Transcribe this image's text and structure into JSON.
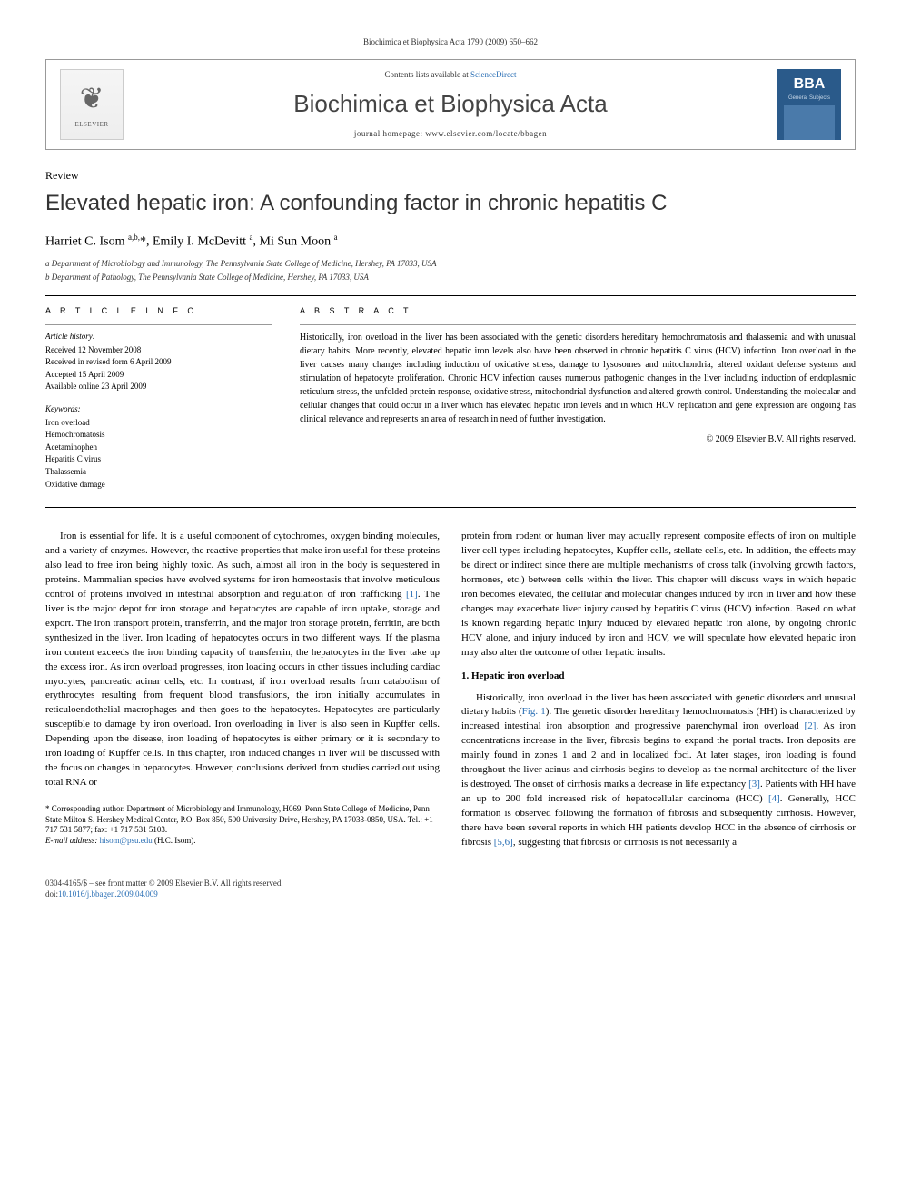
{
  "page_header": "Biochimica et Biophysica Acta 1790 (2009) 650–662",
  "banner": {
    "elsevier": "ELSEVIER",
    "contents_prefix": "Contents lists available at ",
    "sciencedirect": "ScienceDirect",
    "journal_name": "Biochimica et Biophysica Acta",
    "homepage_label": "journal homepage: ",
    "homepage_url": "www.elsevier.com/locate/bbagen",
    "bba_label": "BBA",
    "bba_sub": "General Subjects"
  },
  "article_type": "Review",
  "title": "Elevated hepatic iron: A confounding factor in chronic hepatitis C",
  "authors_html": "Harriet C. Isom <sup>a,b,</sup>*, Emily I. McDevitt <sup>a</sup>, Mi Sun Moon <sup>a</sup>",
  "affiliations": [
    "a Department of Microbiology and Immunology, The Pennsylvania State College of Medicine, Hershey, PA 17033, USA",
    "b Department of Pathology, The Pennsylvania State College of Medicine, Hershey, PA 17033, USA"
  ],
  "article_info": {
    "header": "A R T I C L E   I N F O",
    "history_hdr": "Article history:",
    "history": [
      "Received 12 November 2008",
      "Received in revised form 6 April 2009",
      "Accepted 15 April 2009",
      "Available online 23 April 2009"
    ],
    "keywords_hdr": "Keywords:",
    "keywords": [
      "Iron overload",
      "Hemochromatosis",
      "Acetaminophen",
      "Hepatitis C virus",
      "Thalassemia",
      "Oxidative damage"
    ]
  },
  "abstract": {
    "header": "A B S T R A C T",
    "text": "Historically, iron overload in the liver has been associated with the genetic disorders hereditary hemochromatosis and thalassemia and with unusual dietary habits. More recently, elevated hepatic iron levels also have been observed in chronic hepatitis C virus (HCV) infection. Iron overload in the liver causes many changes including induction of oxidative stress, damage to lysosomes and mitochondria, altered oxidant defense systems and stimulation of hepatocyte proliferation. Chronic HCV infection causes numerous pathogenic changes in the liver including induction of endoplasmic reticulum stress, the unfolded protein response, oxidative stress, mitochondrial dysfunction and altered growth control. Understanding the molecular and cellular changes that could occur in a liver which has elevated hepatic iron levels and in which HCV replication and gene expression are ongoing has clinical relevance and represents an area of research in need of further investigation.",
    "copyright": "© 2009 Elsevier B.V. All rights reserved."
  },
  "body": {
    "p1": "Iron is essential for life. It is a useful component of cytochromes, oxygen binding molecules, and a variety of enzymes. However, the reactive properties that make iron useful for these proteins also lead to free iron being highly toxic. As such, almost all iron in the body is sequestered in proteins. Mammalian species have evolved systems for iron homeostasis that involve meticulous control of proteins involved in intestinal absorption and regulation of iron trafficking ",
    "p1_ref": "[1]",
    "p1b": ". The liver is the major depot for iron storage and hepatocytes are capable of iron uptake, storage and export. The iron transport protein, transferrin, and the major iron storage protein, ferritin, are both synthesized in the liver. Iron loading of hepatocytes occurs in two different ways. If the plasma iron content exceeds the iron binding capacity of transferrin, the hepatocytes in the liver take up the excess iron. As iron overload progresses, iron loading occurs in other tissues including cardiac myocytes, pancreatic acinar cells, etc. In contrast, if iron overload results from catabolism of erythrocytes resulting from frequent blood transfusions, the iron initially accumulates in reticuloendothelial macrophages and then goes to the hepatocytes. Hepatocytes are particularly susceptible to damage by iron overload. Iron overloading in liver is also seen in Kupffer cells. Depending upon the disease, iron loading of hepatocytes is either primary or it is secondary to iron loading of Kupffer cells. In this chapter, iron induced changes in liver will be discussed with the focus on changes in hepatocytes. However, conclusions derived from studies carried out using total RNA or",
    "p2": "protein from rodent or human liver may actually represent composite effects of iron on multiple liver cell types including hepatocytes, Kupffer cells, stellate cells, etc. In addition, the effects may be direct or indirect since there are multiple mechanisms of cross talk (involving growth factors, hormones, etc.) between cells within the liver. This chapter will discuss ways in which hepatic iron becomes elevated, the cellular and molecular changes induced by iron in liver and how these changes may exacerbate liver injury caused by hepatitis C virus (HCV) infection. Based on what is known regarding hepatic injury induced by elevated hepatic iron alone, by ongoing chronic HCV alone, and injury induced by iron and HCV, we will speculate how elevated hepatic iron may also alter the outcome of other hepatic insults.",
    "h1": "1. Hepatic iron overload",
    "p3a": "Historically, iron overload in the liver has been associated with genetic disorders and unusual dietary habits (",
    "p3_fig": "Fig. 1",
    "p3b": "). The genetic disorder hereditary hemochromatosis (HH) is characterized by increased intestinal iron absorption and progressive parenchymal iron overload ",
    "p3_ref2": "[2]",
    "p3c": ". As iron concentrations increase in the liver, fibrosis begins to expand the portal tracts. Iron deposits are mainly found in zones 1 and 2 and in localized foci. At later stages, iron loading is found throughout the liver acinus and cirrhosis begins to develop as the normal architecture of the liver is destroyed. The onset of cirrhosis marks a decrease in life expectancy ",
    "p3_ref3": "[3]",
    "p3d": ". Patients with HH have an up to 200 fold increased risk of hepatocellular carcinoma (HCC) ",
    "p3_ref4": "[4]",
    "p3e": ". Generally, HCC formation is observed following the formation of fibrosis and subsequently cirrhosis. However, there have been several reports in which HH patients develop HCC in the absence of cirrhosis or fibrosis ",
    "p3_ref56": "[5,6]",
    "p3f": ", suggesting that fibrosis or cirrhosis is not necessarily a"
  },
  "footnote": {
    "corr": "* Corresponding author. Department of Microbiology and Immunology, H069, Penn State College of Medicine, Penn State Milton S. Hershey Medical Center, P.O. Box 850, 500 University Drive, Hershey, PA 17033-0850, USA. Tel.: +1 717 531 5877; fax: +1 717 531 5103.",
    "email_label": "E-mail address: ",
    "email": "hisom@psu.edu",
    "email_suffix": " (H.C. Isom)."
  },
  "footer": {
    "left_line1": "0304-4165/$ – see front matter © 2009 Elsevier B.V. All rights reserved.",
    "left_line2_prefix": "doi:",
    "doi": "10.1016/j.bbagen.2009.04.009"
  }
}
